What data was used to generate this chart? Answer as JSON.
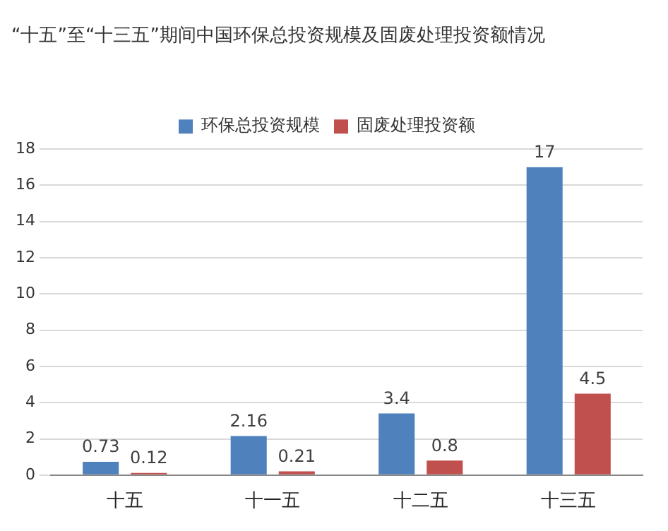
{
  "chart_data": {
    "type": "bar",
    "title": "“十五”至“十三五”期间中国环保总投资规模及固废处理投资额情况",
    "categories": [
      "十五",
      "十一五",
      "十二五",
      "十三五"
    ],
    "series": [
      {
        "name": "环保总投资规模",
        "color": "#4f81bd",
        "values": [
          0.73,
          2.16,
          3.4,
          17
        ]
      },
      {
        "name": "固废处理投资额",
        "color": "#c0504d",
        "values": [
          0.12,
          0.21,
          0.8,
          4.5
        ]
      }
    ],
    "ylim": [
      0,
      18
    ],
    "yticks": [
      0,
      2,
      4,
      6,
      8,
      10,
      12,
      14,
      16,
      18
    ],
    "grid": "y",
    "legend": "top",
    "data_labels": true
  }
}
